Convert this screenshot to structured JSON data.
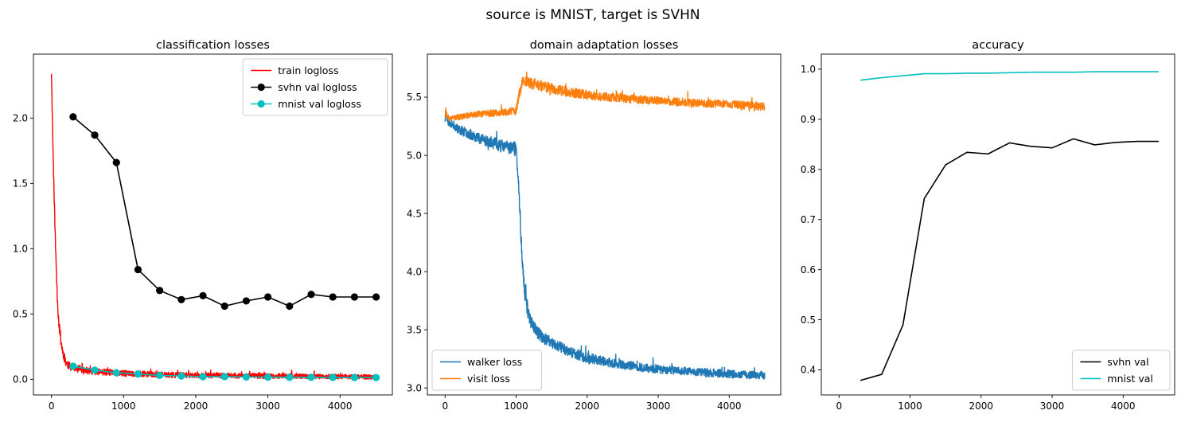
{
  "suptitle": "source is MNIST, target is SVHN",
  "chart_data": [
    {
      "type": "line",
      "title": "classification losses",
      "xlabel": "",
      "ylabel": "",
      "xlim": [
        -250,
        4725
      ],
      "ylim": [
        -0.12,
        2.49
      ],
      "xticks": [
        0,
        1000,
        2000,
        3000,
        4000
      ],
      "yticks": [
        0.0,
        0.5,
        1.0,
        1.5,
        2.0
      ],
      "ytick_decimals": 1,
      "legend": "top-right",
      "series": [
        {
          "name": "train logloss",
          "color": "#ff0000",
          "noisy": true,
          "noise_seed": 11,
          "x": [
            0,
            20,
            40,
            60,
            80,
            100,
            130,
            160,
            200,
            250,
            300,
            400,
            500,
            700,
            1000,
            1500,
            2000,
            2500,
            3000,
            3500,
            4000,
            4500
          ],
          "y": [
            2.35,
            1.8,
            1.35,
            0.95,
            0.65,
            0.45,
            0.3,
            0.2,
            0.13,
            0.1,
            0.09,
            0.075,
            0.065,
            0.055,
            0.045,
            0.035,
            0.03,
            0.027,
            0.025,
            0.022,
            0.02,
            0.018
          ],
          "noise": [
            0.02,
            0.03,
            0.04,
            0.05,
            0.05,
            0.05,
            0.04,
            0.04,
            0.035,
            0.03,
            0.03,
            0.028,
            0.026,
            0.025,
            0.024,
            0.022,
            0.02,
            0.02,
            0.02,
            0.018,
            0.018,
            0.018
          ]
        },
        {
          "name": "svhn val logloss",
          "color": "#000000",
          "marker": true,
          "x": [
            300,
            600,
            900,
            1200,
            1500,
            1800,
            2100,
            2400,
            2700,
            3000,
            3300,
            3600,
            3900,
            4200,
            4500
          ],
          "y": [
            2.01,
            1.87,
            1.66,
            0.84,
            0.68,
            0.61,
            0.64,
            0.56,
            0.6,
            0.63,
            0.56,
            0.65,
            0.63,
            0.63,
            0.63
          ]
        },
        {
          "name": "mnist val logloss",
          "color": "#00bfbf",
          "marker": true,
          "x": [
            300,
            600,
            900,
            1200,
            1500,
            1800,
            2100,
            2400,
            2700,
            3000,
            3300,
            3600,
            3900,
            4200,
            4500
          ],
          "y": [
            0.1,
            0.07,
            0.05,
            0.04,
            0.03,
            0.025,
            0.02,
            0.02,
            0.018,
            0.016,
            0.015,
            0.015,
            0.014,
            0.013,
            0.013
          ]
        }
      ]
    },
    {
      "type": "line",
      "title": "domain adaptation losses",
      "xlabel": "",
      "ylabel": "",
      "xlim": [
        -250,
        4725
      ],
      "ylim": [
        2.94,
        5.87
      ],
      "xticks": [
        0,
        1000,
        2000,
        3000,
        4000
      ],
      "yticks": [
        3.0,
        3.5,
        4.0,
        4.5,
        5.0,
        5.5
      ],
      "ytick_decimals": 1,
      "legend": "bottom-left",
      "series": [
        {
          "name": "walker loss",
          "color": "#1f77b4",
          "noisy": true,
          "noise_seed": 23,
          "x": [
            0,
            10,
            30,
            50,
            100,
            200,
            400,
            600,
            800,
            950,
            1000,
            1030,
            1060,
            1090,
            1120,
            1150,
            1200,
            1300,
            1400,
            1600,
            1800,
            2000,
            2300,
            2600,
            3000,
            3500,
            4000,
            4500
          ],
          "y": [
            5.3,
            5.42,
            5.3,
            5.28,
            5.27,
            5.22,
            5.17,
            5.12,
            5.08,
            5.07,
            5.05,
            4.8,
            4.4,
            4.05,
            3.82,
            3.7,
            3.58,
            3.48,
            3.42,
            3.36,
            3.3,
            3.26,
            3.22,
            3.19,
            3.16,
            3.14,
            3.12,
            3.11
          ],
          "noise": [
            0.02,
            0.05,
            0.03,
            0.03,
            0.035,
            0.04,
            0.045,
            0.05,
            0.055,
            0.06,
            0.06,
            0.06,
            0.06,
            0.06,
            0.06,
            0.06,
            0.06,
            0.055,
            0.05,
            0.05,
            0.045,
            0.045,
            0.04,
            0.04,
            0.035,
            0.035,
            0.035,
            0.035
          ]
        },
        {
          "name": "visit loss",
          "color": "#ff7f0e",
          "noisy": true,
          "noise_seed": 37,
          "x": [
            0,
            10,
            30,
            50,
            100,
            200,
            400,
            600,
            800,
            1000,
            1050,
            1100,
            1200,
            1400,
            1600,
            2000,
            2500,
            3000,
            3500,
            4000,
            4500
          ],
          "y": [
            5.35,
            5.4,
            5.32,
            5.31,
            5.32,
            5.33,
            5.35,
            5.36,
            5.37,
            5.38,
            5.55,
            5.65,
            5.62,
            5.59,
            5.56,
            5.52,
            5.49,
            5.47,
            5.45,
            5.44,
            5.42
          ],
          "noise": [
            0.02,
            0.04,
            0.02,
            0.02,
            0.02,
            0.025,
            0.025,
            0.03,
            0.03,
            0.035,
            0.05,
            0.05,
            0.05,
            0.045,
            0.045,
            0.04,
            0.04,
            0.035,
            0.035,
            0.035,
            0.035
          ]
        }
      ]
    },
    {
      "type": "line",
      "title": "accuracy",
      "xlabel": "",
      "ylabel": "",
      "xlim": [
        -250,
        4725
      ],
      "ylim": [
        0.35,
        1.03
      ],
      "xticks": [
        0,
        1000,
        2000,
        3000,
        4000
      ],
      "yticks": [
        0.4,
        0.5,
        0.6,
        0.7,
        0.8,
        0.9,
        1.0
      ],
      "ytick_decimals": 1,
      "legend": "bottom-right",
      "series": [
        {
          "name": "svhn val",
          "color": "#000000",
          "x": [
            300,
            600,
            900,
            1200,
            1500,
            1800,
            2100,
            2400,
            2700,
            3000,
            3300,
            3600,
            3900,
            4200,
            4500
          ],
          "y": [
            0.379,
            0.391,
            0.49,
            0.742,
            0.809,
            0.834,
            0.831,
            0.853,
            0.846,
            0.843,
            0.861,
            0.849,
            0.854,
            0.856,
            0.856
          ]
        },
        {
          "name": "mnist val",
          "color": "#00bfbf",
          "x": [
            300,
            600,
            900,
            1200,
            1500,
            1800,
            2100,
            2400,
            2700,
            3000,
            3300,
            3600,
            3900,
            4200,
            4500
          ],
          "y": [
            0.978,
            0.983,
            0.987,
            0.991,
            0.991,
            0.992,
            0.992,
            0.993,
            0.994,
            0.994,
            0.994,
            0.995,
            0.995,
            0.995,
            0.995
          ]
        }
      ]
    }
  ]
}
